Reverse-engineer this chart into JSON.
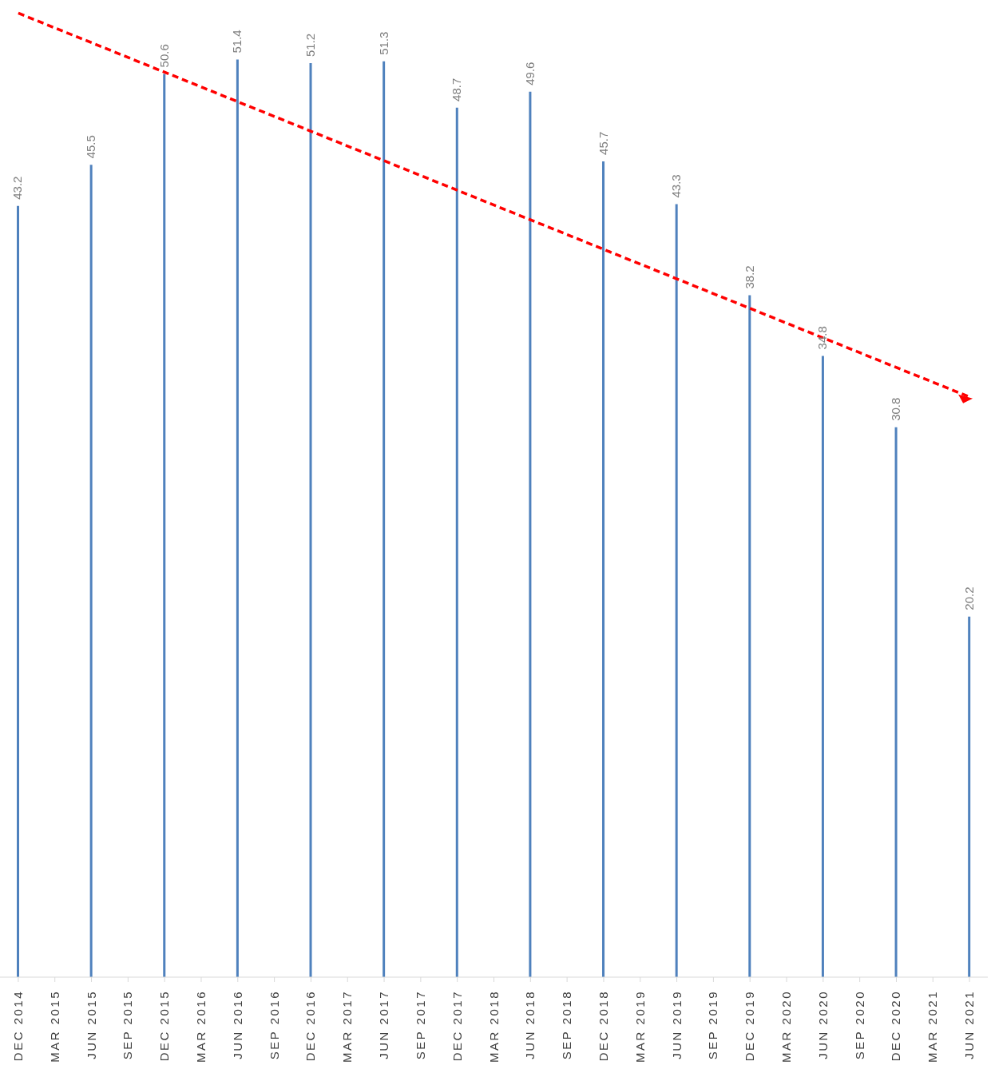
{
  "chart_data": {
    "type": "bar",
    "categories": [
      "DEC 2014",
      "MAR 2015",
      "JUN 2015",
      "SEP 2015",
      "DEC 2015",
      "MAR 2016",
      "JUN 2016",
      "SEP 2016",
      "DEC 2016",
      "MAR 2017",
      "JUN 2017",
      "SEP 2017",
      "DEC 2017",
      "MAR 2018",
      "JUN 2018",
      "SEP 2018",
      "DEC 2018",
      "MAR 2019",
      "JUN 2019",
      "SEP 2019",
      "DEC 2019",
      "MAR 2020",
      "JUN 2020",
      "SEP 2020",
      "DEC 2020",
      "MAR 2021",
      "JUN 2021"
    ],
    "series": [
      {
        "color": "#4f81bd",
        "values": [
          43.2,
          null,
          45.5,
          null,
          50.6,
          null,
          51.4,
          null,
          51.2,
          null,
          51.3,
          null,
          48.7,
          null,
          49.6,
          null,
          45.7,
          null,
          43.3,
          null,
          38.2,
          null,
          34.8,
          null,
          30.8,
          null,
          20.2
        ],
        "value_labels": [
          "43.2",
          null,
          "45.5",
          null,
          "50.6",
          null,
          "51.4",
          null,
          "51.2",
          null,
          "51.3",
          null,
          "48.7",
          null,
          "49.6",
          null,
          "45.7",
          null,
          "43.3",
          null,
          "38.2",
          null,
          "34.8",
          null,
          "30.8",
          null,
          "20.2"
        ]
      },
      {
        "type": "line",
        "color": "#ff0000",
        "line_style": "dashed",
        "x": [
          "DEC 2014",
          "JUN 2021"
        ],
        "values": [
          54.0,
          32.5
        ]
      }
    ]
  }
}
